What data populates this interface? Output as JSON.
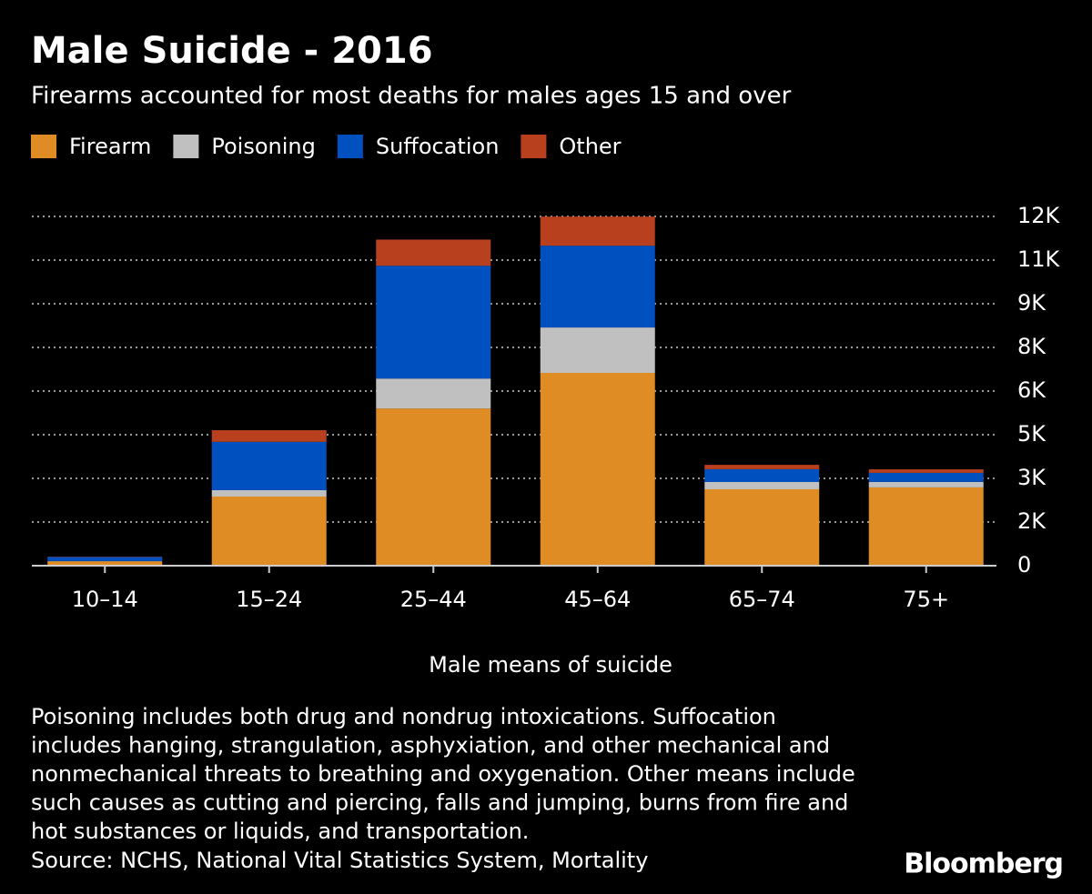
{
  "chart_data": {
    "type": "stacked-bar",
    "title": "Male Suicide - 2016",
    "subtitle": "Firearms accounted for most deaths for males ages 15 and over",
    "x_label": "Male means of suicide",
    "categories": [
      "10–14",
      "15–24",
      "25–44",
      "45–64",
      "65–74",
      "75+"
    ],
    "series": [
      {
        "name": "Firearm",
        "color": "#e08c24",
        "values": [
          150,
          2375,
          5400,
          6625,
          2625,
          2690
        ]
      },
      {
        "name": "Poisoning",
        "color": "#c0c0c0",
        "values": [
          10,
          220,
          1030,
          1560,
          250,
          190
        ]
      },
      {
        "name": "Suffocation",
        "color": "#0050c0",
        "values": [
          140,
          1660,
          3875,
          2810,
          440,
          310
        ]
      },
      {
        "name": "Other",
        "color": "#b8401e",
        "values": [
          10,
          400,
          900,
          1000,
          150,
          120
        ]
      }
    ],
    "ylim": [
      0,
      12000
    ],
    "yticks": [
      0,
      {
        "value": 1500,
        "label": "2K"
      },
      {
        "value": 3000,
        "label": "3K"
      },
      {
        "value": 4500,
        "label": "5K"
      },
      {
        "value": 6000,
        "label": "6K"
      },
      {
        "value": 7500,
        "label": "8K"
      },
      {
        "value": 9000,
        "label": "9K"
      },
      {
        "value": 10500,
        "label": "11K"
      },
      {
        "value": 12000,
        "label": "12K"
      }
    ],
    "grid": true,
    "legend": "top-left",
    "notes": [
      "Poisoning includes both drug and nondrug intoxications. Suffocation",
      "includes hanging, strangulation, asphyxiation, and other mechanical and",
      "nonmechanical threats to breathing and oxygenation. Other means include",
      "such causes as cutting and piercing, falls and jumping, burns from fire and",
      "hot substances or liquids, and transportation."
    ],
    "source": "Source: NCHS, National Vital Statistics System, Mortality",
    "brand": "Bloomberg"
  }
}
